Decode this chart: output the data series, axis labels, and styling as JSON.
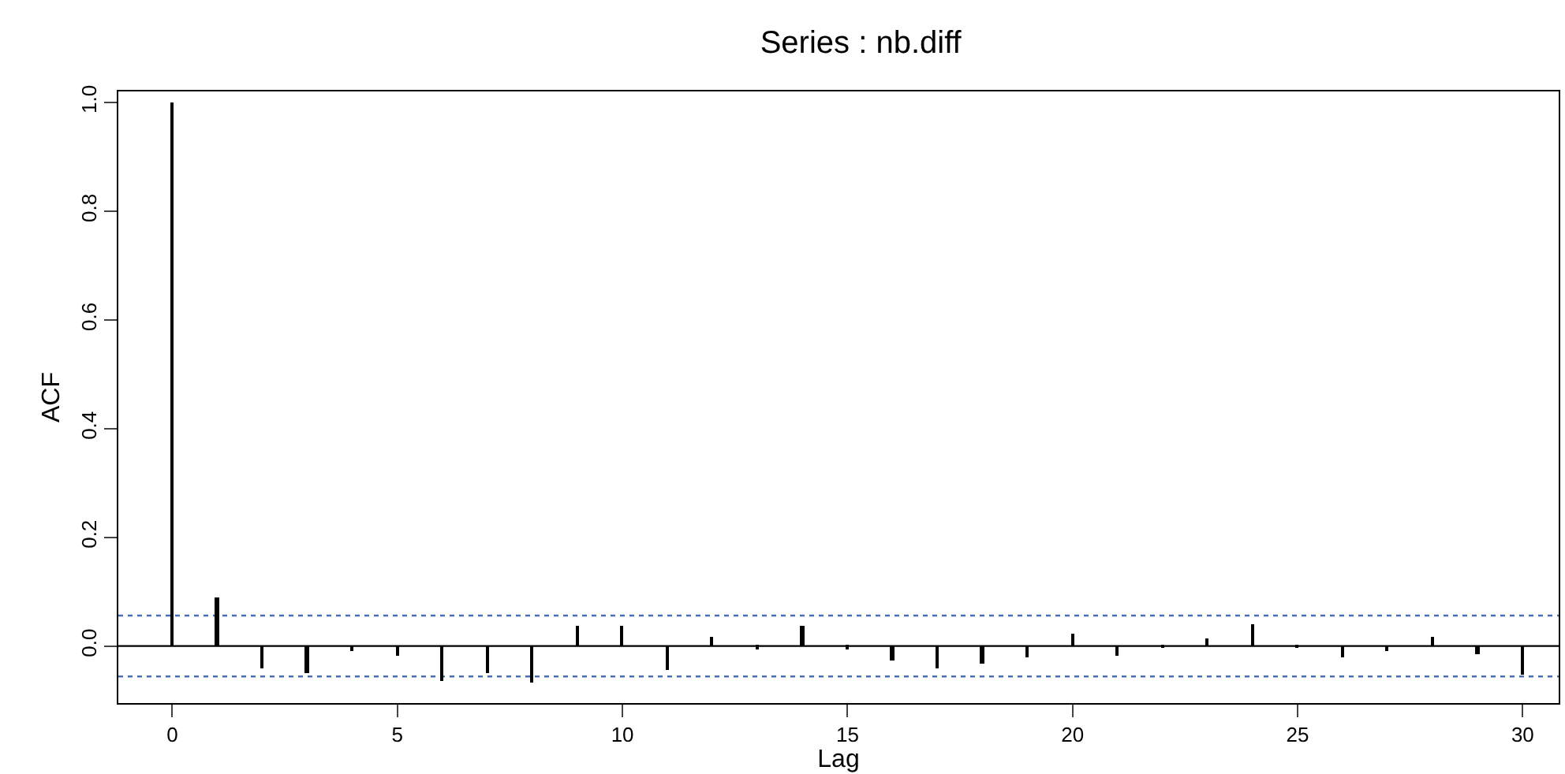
{
  "chart_data": {
    "type": "bar",
    "title": "Series : nb.diff",
    "xlabel": "Lag",
    "ylabel": "ACF",
    "x": [
      0,
      1,
      2,
      3,
      4,
      5,
      6,
      7,
      8,
      9,
      10,
      11,
      12,
      13,
      14,
      15,
      16,
      17,
      18,
      19,
      20,
      21,
      22,
      23,
      24,
      25,
      26,
      27,
      28,
      29,
      30
    ],
    "values": [
      1.0,
      0.088,
      -0.042,
      -0.05,
      -0.01,
      -0.017,
      -0.065,
      -0.05,
      -0.067,
      0.037,
      0.036,
      -0.043,
      0.018,
      -0.005,
      0.037,
      -0.005,
      -0.028,
      -0.041,
      -0.032,
      -0.02,
      0.022,
      -0.018,
      -0.003,
      0.015,
      0.039,
      -0.004,
      -0.022,
      -0.008,
      0.018,
      -0.015,
      -0.053
    ],
    "color": "#000000",
    "xlim": [
      -1.2,
      30.8
    ],
    "xticks": [
      0,
      5,
      10,
      15,
      20,
      25,
      30
    ],
    "ylim": [
      -0.105,
      1.02
    ],
    "yticks": [
      {
        "value": 0,
        "label": "0.0"
      },
      0.2,
      0.4,
      0.6,
      0.8,
      {
        "value": 1,
        "label": "1.0"
      }
    ],
    "ref_lines": [
      {
        "axis": "y",
        "value": 0.056,
        "color": "#4a6fb5",
        "line_style": "dotted"
      },
      {
        "axis": "y",
        "value": -0.056,
        "color": "#4a6fb5",
        "line_style": "dotted"
      },
      {
        "axis": "y",
        "value": 0,
        "color": "#000000",
        "line_style": "solid"
      }
    ],
    "grid": false
  }
}
